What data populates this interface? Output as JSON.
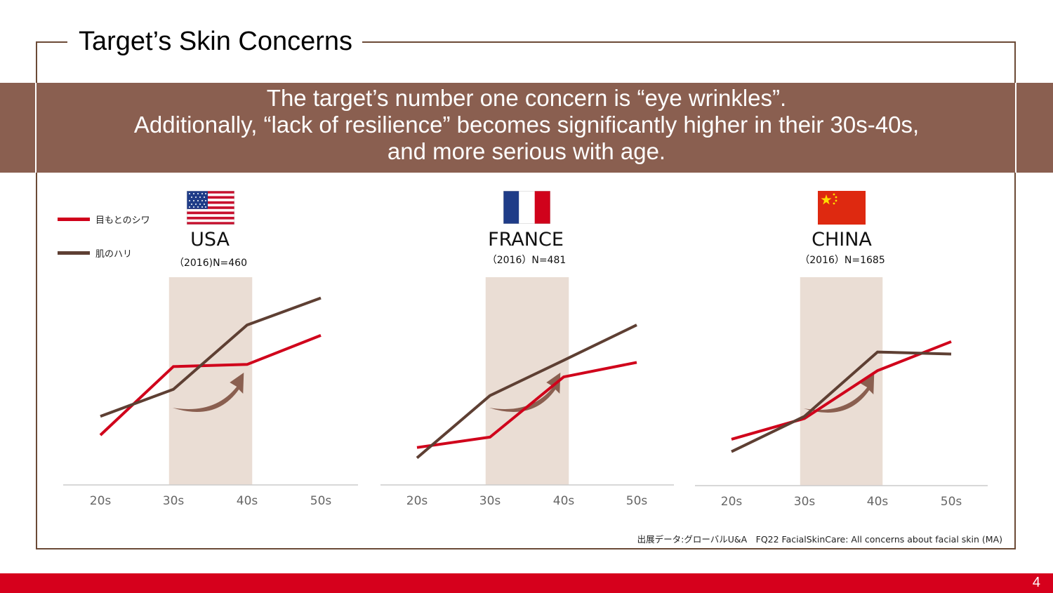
{
  "slide": {
    "title": "Target’s Skin Concerns",
    "headline_lines": [
      "The target’s number one concern is “eye wrinkles”.",
      "Additionally, “lack of resilience” becomes significantly higher in their 30s-40s,",
      "and more serious with age."
    ],
    "source": "出展データ:グローバルU&A　FQ22 FacialSkinCare: All concerns about facial skin (MA)",
    "page_number": "4"
  },
  "legend": [
    {
      "label": "目もとのシワ",
      "color": "#d0021b"
    },
    {
      "label": "肌のハリ",
      "color": "#5e3f33"
    }
  ],
  "colors": {
    "frame": "#6b4a36",
    "banner": "#8a5f50",
    "highlight": "#eaddd4",
    "arrow": "#8a5f50",
    "axis": "#cccccc",
    "tick": "#666666",
    "footer": "#d6001c"
  },
  "chart_data": [
    {
      "type": "line",
      "country": "USA",
      "sample": "（2016)N=460",
      "flag_icon": "usa-flag-icon",
      "categories": [
        "20s",
        "30s",
        "40s",
        "50s"
      ],
      "highlight_categories": [
        "30s",
        "40s"
      ],
      "ylim": [
        0,
        100
      ],
      "series": [
        {
          "name": "目もとのシワ",
          "values": [
            24,
            57,
            58,
            72
          ]
        },
        {
          "name": "肌のハリ",
          "values": [
            33,
            46,
            77,
            90
          ]
        }
      ]
    },
    {
      "type": "line",
      "country": "FRANCE",
      "sample": "（2016）N=481",
      "flag_icon": "france-flag-icon",
      "categories": [
        "20s",
        "30s",
        "40s",
        "50s"
      ],
      "highlight_categories": [
        "30s",
        "40s"
      ],
      "ylim": [
        0,
        100
      ],
      "series": [
        {
          "name": "目もとのシワ",
          "values": [
            18,
            23,
            52,
            59
          ]
        },
        {
          "name": "肌のハリ",
          "values": [
            13,
            43,
            60,
            77
          ]
        }
      ]
    },
    {
      "type": "line",
      "country": "CHINA",
      "sample": "（2016）N=1685",
      "flag_icon": "china-flag-icon",
      "categories": [
        "20s",
        "30s",
        "40s",
        "50s"
      ],
      "highlight_categories": [
        "30s",
        "40s"
      ],
      "ylim": [
        0,
        100
      ],
      "series": [
        {
          "name": "目もとのシワ",
          "values": [
            22,
            32,
            55,
            69
          ]
        },
        {
          "name": "肌のハリ",
          "values": [
            16,
            33,
            64,
            63
          ]
        }
      ]
    }
  ]
}
